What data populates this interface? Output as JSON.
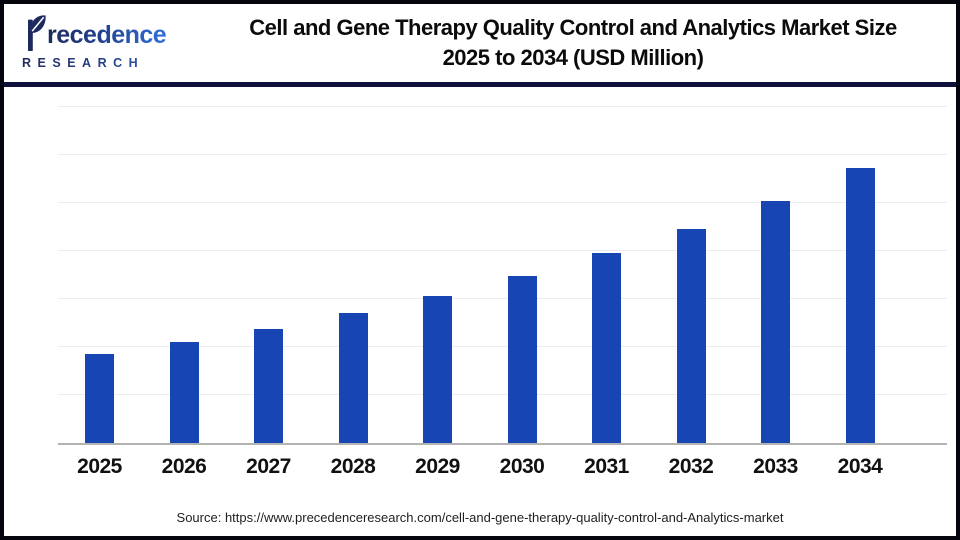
{
  "logo": {
    "brand_word": "Precedence",
    "word_rest": "recedence",
    "subtitle": "RESEARCH"
  },
  "header": {
    "title_line1": "Cell and Gene Therapy Quality Control and Analytics Market Size",
    "title_line2": "2025 to 2034 (USD Million)"
  },
  "footer": {
    "source": "Source: https://www.precedenceresearch.com/cell-and-gene-therapy-quality-control-and-Analytics-market"
  },
  "chart_data": {
    "type": "bar",
    "title": "Cell and Gene Therapy Quality Control and Analytics Market Size 2025 to 2034 (USD Million)",
    "unit": "USD Million",
    "categories": [
      "2025",
      "2026",
      "2027",
      "2028",
      "2029",
      "2030",
      "2031",
      "2032",
      "2033",
      "2034"
    ],
    "values": [
      100,
      113,
      128,
      146,
      165,
      188,
      213,
      240,
      272,
      309
    ],
    "values_basis": "relative index estimated from bar heights (2025 = 100); chart shows no y-axis tick labels or data labels",
    "xlabel": "",
    "ylabel": "",
    "ylim": [
      0,
      378
    ],
    "grid": true,
    "gridline_count": 7,
    "legend": false,
    "y_axis_labels_visible": false,
    "bar_color": "#1745b3"
  },
  "colors": {
    "bar": "#1745b3",
    "header_divider": "#10123c",
    "logo_navy": "#1d2a5e",
    "logo_blue": "#2f6fdb",
    "gridline": "#ececec",
    "axis_line": "#b3b3b3",
    "frame_border": "#05060d"
  }
}
